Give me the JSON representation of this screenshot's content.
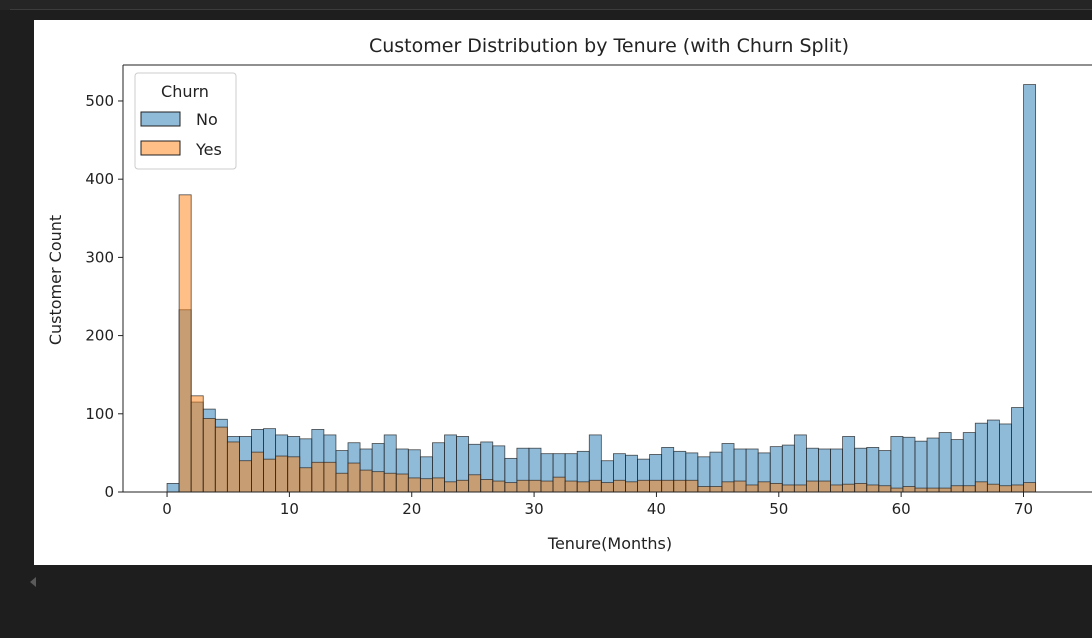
{
  "colors": {
    "no": "#1f77b4",
    "yes": "#ff7f0e",
    "background": "#1e1e1e",
    "figure": "#ffffff"
  },
  "chart_data": {
    "type": "histogram",
    "title": "Customer Distribution by Tenure (with Churn Split)",
    "xlabel": "Tenure(Months)",
    "ylabel": "Customer Count",
    "xlim": [
      -3.6,
      75.6
    ],
    "ylim": [
      0,
      546
    ],
    "xticks": [
      0,
      10,
      20,
      30,
      40,
      50,
      60,
      70
    ],
    "yticks": [
      0,
      100,
      200,
      300,
      400,
      500
    ],
    "bin_start": 0,
    "bin_width": 0.986,
    "overlay": true,
    "alpha": 0.5,
    "legend": {
      "title": "Churn",
      "position": "top-left"
    },
    "series": [
      {
        "name": "No",
        "color": "#1f77b4",
        "values": [
          11,
          233,
          115,
          106,
          93,
          71,
          71,
          80,
          81,
          73,
          71,
          68,
          80,
          73,
          53,
          63,
          55,
          62,
          73,
          55,
          54,
          45,
          63,
          73,
          71,
          61,
          64,
          59,
          43,
          56,
          56,
          49,
          49,
          49,
          52,
          73,
          40,
          49,
          47,
          42,
          48,
          57,
          52,
          50,
          45,
          51,
          62,
          55,
          55,
          50,
          58,
          60,
          73,
          56,
          55,
          55,
          71,
          56,
          57,
          53,
          71,
          70,
          65,
          69,
          76,
          67,
          76,
          88,
          92,
          87,
          108,
          521
        ]
      },
      {
        "name": "Yes",
        "color": "#ff7f0e",
        "values": [
          0,
          380,
          123,
          94,
          83,
          64,
          40,
          51,
          42,
          46,
          45,
          31,
          38,
          38,
          24,
          37,
          28,
          26,
          24,
          23,
          18,
          17,
          18,
          13,
          15,
          22,
          16,
          14,
          12,
          15,
          15,
          14,
          19,
          14,
          13,
          15,
          12,
          15,
          13,
          15,
          15,
          15,
          15,
          15,
          7,
          7,
          13,
          14,
          9,
          13,
          11,
          9,
          9,
          14,
          14,
          9,
          10,
          11,
          9,
          8,
          5,
          7,
          5,
          5,
          5,
          8,
          8,
          13,
          10,
          8,
          9,
          12
        ]
      }
    ]
  }
}
